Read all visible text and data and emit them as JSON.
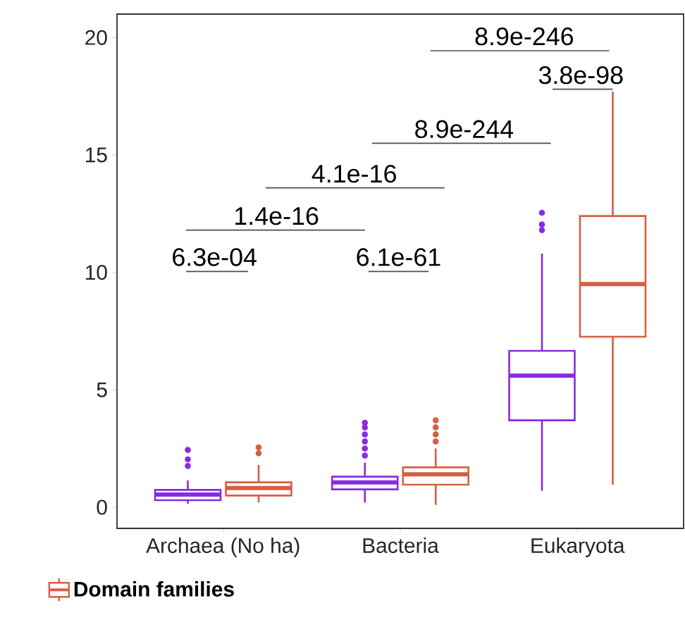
{
  "chart_data": {
    "type": "box",
    "categories": [
      "Archaea (No ha)",
      "Bacteria",
      "Eukaryota"
    ],
    "ylim": [
      -0.9,
      21
    ],
    "yticks": [
      0,
      5,
      10,
      15,
      20
    ],
    "grid": false,
    "legend": "bottom left",
    "series": [
      {
        "color": "#8b2be0",
        "boxes": [
          {
            "low": 0.15,
            "q1": 0.3,
            "median": 0.54,
            "q3": 0.74,
            "high": 1.14,
            "outliers": [
              1.76,
              2.04,
              2.44
            ]
          },
          {
            "low": 0.2,
            "q1": 0.76,
            "median": 1.06,
            "q3": 1.3,
            "high": 1.9,
            "outliers": [
              2.2,
              2.5,
              2.8,
              3.1,
              3.4,
              3.6
            ]
          },
          {
            "low": 0.7,
            "q1": 3.7,
            "median": 5.6,
            "q3": 6.66,
            "high": 10.8,
            "outliers": [
              11.8,
              12.04,
              12.54
            ]
          }
        ]
      },
      {
        "name": "Domain families",
        "color": "#d65f43",
        "boxes": [
          {
            "low": 0.2,
            "q1": 0.5,
            "median": 0.82,
            "q3": 1.06,
            "high": 1.8,
            "outliers": [
              2.3,
              2.55
            ]
          },
          {
            "low": 0.1,
            "q1": 0.96,
            "median": 1.4,
            "q3": 1.7,
            "high": 2.5,
            "outliers": [
              2.8,
              3.1,
              3.4,
              3.7
            ]
          },
          {
            "low": 0.96,
            "q1": 7.26,
            "median": 9.5,
            "q3": 12.4,
            "high": 17.7
          }
        ]
      }
    ],
    "annotations": [
      "6.3e-04",
      "1.4e-16",
      "6.1e-61",
      "4.1e-16",
      "8.9e-244",
      "8.9e-246",
      "3.8e-98"
    ]
  }
}
